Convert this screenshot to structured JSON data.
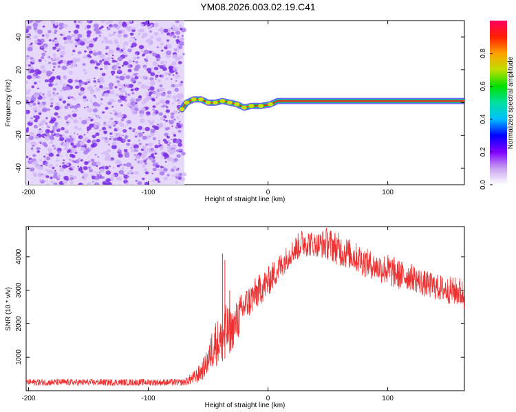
{
  "title": "YM08.2026.003.02.19.C41",
  "chart_data": [
    {
      "type": "heatmap",
      "xlabel": "Height of straight line (km)",
      "ylabel": "Frequency (Hz)",
      "xlim": [
        -202,
        164
      ],
      "ylim": [
        -50,
        50
      ],
      "xticks": [
        -200,
        -100,
        0,
        100
      ],
      "yticks": [
        -40,
        -20,
        0,
        20,
        40
      ],
      "noise_region_x": [
        -202,
        -70
      ],
      "noise_color": "#7a2ee8",
      "signal_track": [
        {
          "x": -72,
          "y": -4
        },
        {
          "x": -68,
          "y": 0
        },
        {
          "x": -62,
          "y": 2
        },
        {
          "x": -56,
          "y": 2
        },
        {
          "x": -50,
          "y": 0
        },
        {
          "x": -44,
          "y": 0
        },
        {
          "x": -38,
          "y": 1
        },
        {
          "x": -32,
          "y": 0
        },
        {
          "x": -26,
          "y": -1
        },
        {
          "x": -20,
          "y": -3
        },
        {
          "x": -14,
          "y": -2
        },
        {
          "x": -6,
          "y": -2
        },
        {
          "x": 2,
          "y": -1
        },
        {
          "x": 8,
          "y": 1
        },
        {
          "x": 164,
          "y": 1
        }
      ],
      "colorbar": {
        "label": "Normalized spectral amplitude",
        "range": [
          0,
          1
        ],
        "ticks": [
          0.0,
          0.2,
          0.4,
          0.6,
          0.8
        ],
        "colors": [
          "#ffffff",
          "#c8a0f0",
          "#8000ff",
          "#0000ff",
          "#00c0ff",
          "#00e0a0",
          "#00e000",
          "#c0e000",
          "#ffa000",
          "#ff2000",
          "#ff0060"
        ]
      }
    },
    {
      "type": "line",
      "xlabel": "Height of straight line (km)",
      "ylabel": "SNR (10 * v/v)",
      "xlim": [
        -202,
        164
      ],
      "ylim": [
        0,
        4900
      ],
      "xticks": [
        -200,
        -100,
        0,
        100
      ],
      "yticks": [
        1000,
        2000,
        3000,
        4000
      ],
      "color": "#f03030",
      "envelope": {
        "x": [
          -202,
          -150,
          -100,
          -70,
          -60,
          -55,
          -50,
          -45,
          -40,
          -35,
          -30,
          -25,
          -20,
          -10,
          0,
          10,
          20,
          30,
          40,
          50,
          60,
          70,
          80,
          90,
          100,
          110,
          120,
          130,
          140,
          150,
          160,
          164
        ],
        "low": [
          150,
          150,
          150,
          150,
          200,
          300,
          500,
          700,
          800,
          1000,
          1200,
          1500,
          2000,
          2400,
          2800,
          3300,
          3800,
          4000,
          4000,
          3900,
          3700,
          3600,
          3400,
          3300,
          3100,
          3000,
          3000,
          2800,
          2700,
          2600,
          2500,
          2400
        ],
        "high": [
          350,
          350,
          350,
          350,
          650,
          900,
          1300,
          2200,
          2100,
          2600,
          2400,
          2800,
          3000,
          3400,
          3700,
          4100,
          4500,
          4900,
          4700,
          4900,
          4700,
          4500,
          4300,
          4100,
          4100,
          3900,
          3800,
          3600,
          3500,
          3400,
          3400,
          3300
        ]
      },
      "spikes": [
        {
          "x": -38,
          "y": 4100
        },
        {
          "x": -36,
          "y": 3900
        },
        {
          "x": -32,
          "y": 3000
        }
      ]
    }
  ]
}
